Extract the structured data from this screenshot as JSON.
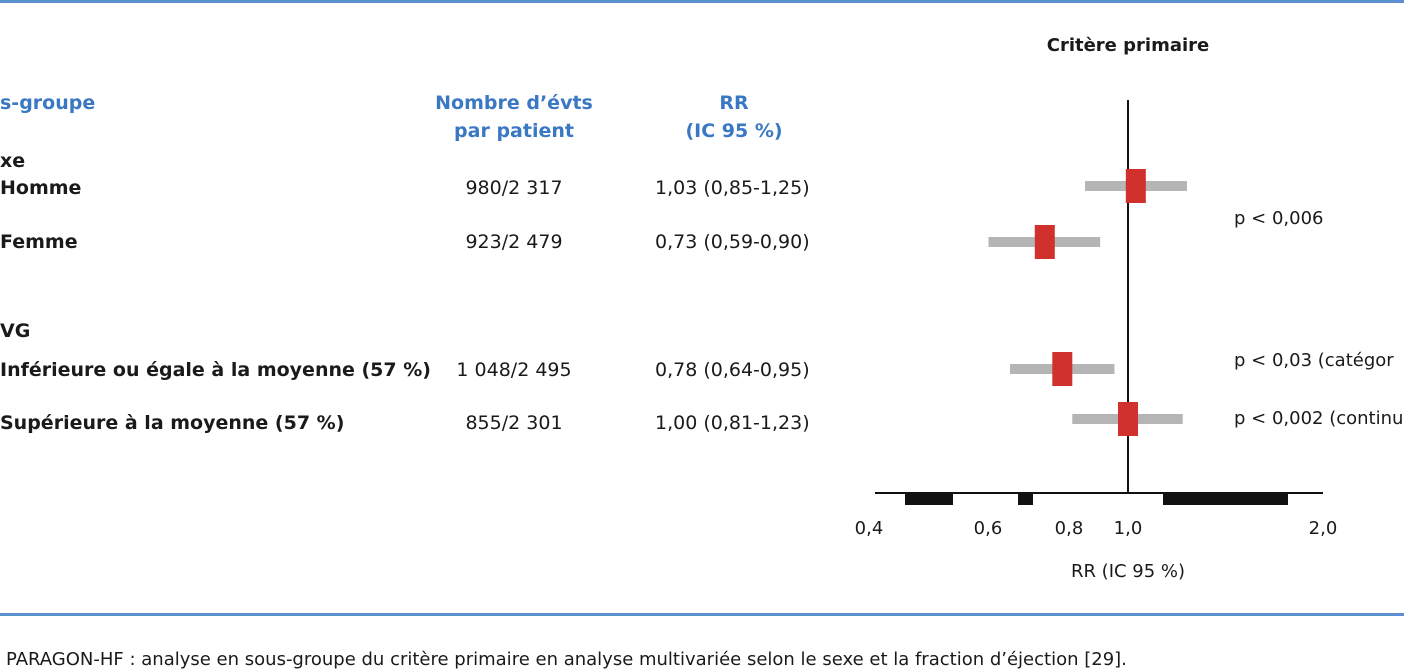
{
  "table": {
    "header": {
      "group_label": "s-groupe",
      "events_line1": "Nombre d’évts",
      "events_line2": "par patient",
      "rr_line1": "RR",
      "rr_line2": "(IC 95 %)"
    },
    "groups": [
      {
        "label": "xe",
        "rows": [
          {
            "label": "Homme",
            "events": "980/2 317",
            "rr": "1,03 (0,85-1,25)"
          },
          {
            "label": "Femme",
            "events": "923/2 479",
            "rr": "0,73 (0,59-0,90)"
          }
        ]
      },
      {
        "label": "VG",
        "rows": [
          {
            "label": "Inférieure ou égale à la moyenne (57 %)",
            "events": "1 048/2 495",
            "rr": "0,78 (0,64-0,95)"
          },
          {
            "label": "Supérieure à la moyenne (57 %)",
            "events": "855/2 301",
            "rr": "1,00 (0,81-1,23)"
          }
        ]
      }
    ]
  },
  "p_values": {
    "sex": "p < 0,006",
    "fe_categorical": "p < 0,03 (catégor",
    "fe_continuous": "p < 0,002 (continu"
  },
  "chart_data": {
    "type": "forest",
    "title": "Critère primaire",
    "xlabel": "RR (IC 95 %)",
    "x_scale": "log",
    "reference_line": 1.0,
    "xticks": [
      {
        "value": 0.4,
        "label": "0,4"
      },
      {
        "value": 0.6,
        "label": "0,6"
      },
      {
        "value": 0.8,
        "label": "0,8"
      },
      {
        "value": 1.0,
        "label": "1,0"
      },
      {
        "value": 2.0,
        "label": "2,0"
      }
    ],
    "series": [
      {
        "category": "Homme",
        "rr": 1.03,
        "ci_low": 0.85,
        "ci_high": 1.25
      },
      {
        "category": "Femme",
        "rr": 0.73,
        "ci_low": 0.59,
        "ci_high": 0.9
      },
      {
        "category": "Inférieure ou égale à la moyenne (57 %)",
        "rr": 0.78,
        "ci_low": 0.64,
        "ci_high": 0.95
      },
      {
        "category": "Supérieure à la moyenne (57 %)",
        "rr": 1.0,
        "ci_low": 0.81,
        "ci_high": 1.23
      }
    ],
    "colors": {
      "point": "#d0312d",
      "ci": "#b5b5b5",
      "axis": "#111111"
    }
  },
  "caption": "PARAGON-HF : analyse en sous-groupe du critère primaire en analyse multivariée selon le sexe et la fraction d’éjection [29]."
}
